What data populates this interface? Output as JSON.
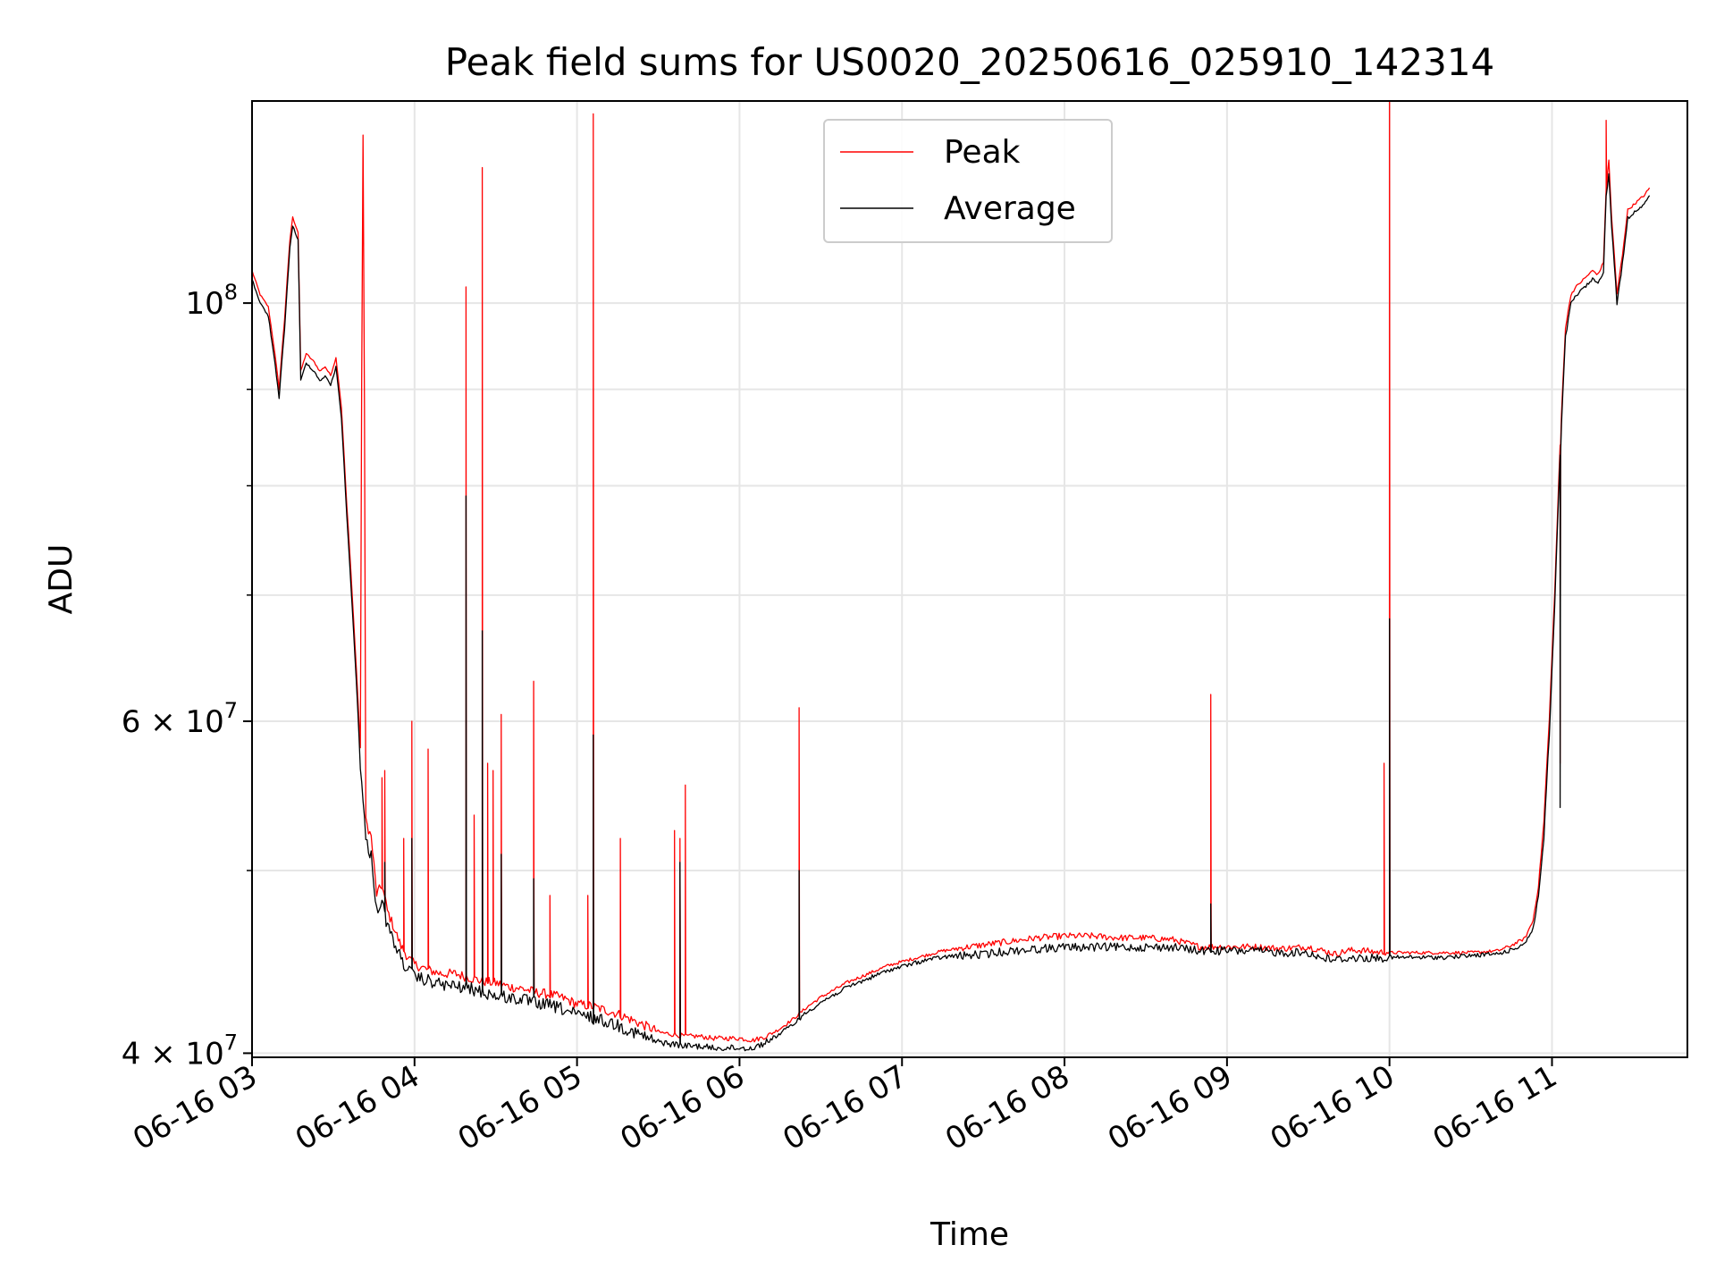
{
  "chart_data": {
    "type": "line",
    "title": "Peak field sums for US0020_20250616_025910_142314",
    "xlabel": "Time",
    "ylabel": "ADU",
    "x_ticks": [
      "06-16 03",
      "06-16 04",
      "06-16 05",
      "06-16 06",
      "06-16 07",
      "06-16 08",
      "06-16 09",
      "06-16 10",
      "06-16 11"
    ],
    "xlim": [
      "2025-06-16 03:00",
      "2025-06-16 11:50"
    ],
    "yscale": "log",
    "ylim": [
      39800000,
      128000000
    ],
    "y_major_ticks": [
      {
        "value": 40000000,
        "label": "4 × 10",
        "exp": "7"
      },
      {
        "value": 60000000,
        "label": "6 × 10",
        "exp": "7"
      },
      {
        "value": 100000000,
        "label": "10",
        "exp": "8"
      }
    ],
    "y_minor_ticks": [
      50000000,
      70000000,
      80000000,
      90000000
    ],
    "grid": true,
    "legend": {
      "position": "top-center"
    },
    "series": [
      {
        "name": "Peak",
        "color": "#ff0000",
        "points": [
          [
            "03:00",
            104000000
          ],
          [
            "03:03",
            101000000
          ],
          [
            "03:06",
            99500000
          ],
          [
            "03:08",
            95000000
          ],
          [
            "03:10",
            90000000
          ],
          [
            "03:12",
            98000000
          ],
          [
            "03:14",
            108000000
          ],
          [
            "03:15",
            111000000
          ],
          [
            "03:17",
            109000000
          ],
          [
            "03:18",
            92000000
          ],
          [
            "03:20",
            94000000
          ],
          [
            "03:23",
            93000000
          ],
          [
            "03:25",
            92000000
          ],
          [
            "03:27",
            92500000
          ],
          [
            "03:29",
            91500000
          ],
          [
            "03:31",
            93500000
          ],
          [
            "03:33",
            88000000
          ],
          [
            "03:35",
            78000000
          ],
          [
            "03:38",
            66000000
          ],
          [
            "03:40",
            58000000
          ],
          [
            "03:41",
            123000000
          ],
          [
            "03:42",
            53000000
          ],
          [
            "03:44",
            52000000
          ],
          [
            "03:46",
            48500000
          ],
          [
            "03:48",
            49000000
          ],
          [
            "03:50",
            47500000
          ],
          [
            "03:55",
            45500000
          ],
          [
            "03:58",
            44800000
          ],
          [
            "04:00",
            44500000
          ],
          [
            "04:05",
            44200000
          ],
          [
            "04:10",
            44000000
          ],
          [
            "04:15",
            44000000
          ],
          [
            "04:20",
            43800000
          ],
          [
            "04:25",
            43600000
          ],
          [
            "04:30",
            43500000
          ],
          [
            "04:35",
            43300000
          ],
          [
            "04:40",
            43200000
          ],
          [
            "04:45",
            43000000
          ],
          [
            "04:50",
            42900000
          ],
          [
            "04:55",
            42700000
          ],
          [
            "05:00",
            42400000
          ],
          [
            "05:05",
            42300000
          ],
          [
            "05:10",
            42100000
          ],
          [
            "05:15",
            41900000
          ],
          [
            "05:20",
            41600000
          ],
          [
            "05:25",
            41300000
          ],
          [
            "05:30",
            41000000
          ],
          [
            "05:35",
            40900000
          ],
          [
            "05:40",
            40800000
          ],
          [
            "05:45",
            40800000
          ],
          [
            "05:50",
            40700000
          ],
          [
            "05:55",
            40700000
          ],
          [
            "06:00",
            40700000
          ],
          [
            "06:05",
            40600000
          ],
          [
            "06:10",
            40800000
          ],
          [
            "06:15",
            41200000
          ],
          [
            "06:20",
            41700000
          ],
          [
            "06:25",
            42300000
          ],
          [
            "06:30",
            42800000
          ],
          [
            "06:35",
            43200000
          ],
          [
            "06:40",
            43600000
          ],
          [
            "06:45",
            43900000
          ],
          [
            "06:50",
            44200000
          ],
          [
            "06:55",
            44500000
          ],
          [
            "07:00",
            44700000
          ],
          [
            "07:05",
            44900000
          ],
          [
            "07:10",
            45100000
          ],
          [
            "07:15",
            45300000
          ],
          [
            "07:20",
            45400000
          ],
          [
            "07:30",
            45600000
          ],
          [
            "07:40",
            45800000
          ],
          [
            "07:50",
            46000000
          ],
          [
            "08:00",
            46100000
          ],
          [
            "08:10",
            46100000
          ],
          [
            "08:20",
            46000000
          ],
          [
            "08:30",
            46000000
          ],
          [
            "08:40",
            45900000
          ],
          [
            "08:45",
            45700000
          ],
          [
            "08:50",
            45500000
          ],
          [
            "09:00",
            45500000
          ],
          [
            "09:10",
            45500000
          ],
          [
            "09:20",
            45400000
          ],
          [
            "09:30",
            45500000
          ],
          [
            "09:35",
            45300000
          ],
          [
            "09:40",
            45100000
          ],
          [
            "09:45",
            45300000
          ],
          [
            "09:50",
            45300000
          ],
          [
            "09:55",
            45200000
          ],
          [
            "10:00",
            45200000
          ],
          [
            "10:10",
            45200000
          ],
          [
            "10:20",
            45200000
          ],
          [
            "10:30",
            45200000
          ],
          [
            "10:40",
            45300000
          ],
          [
            "10:45",
            45600000
          ],
          [
            "10:50",
            46000000
          ],
          [
            "10:53",
            47000000
          ],
          [
            "10:55",
            49000000
          ],
          [
            "10:57",
            53000000
          ],
          [
            "10:59",
            60000000
          ],
          [
            "11:01",
            70000000
          ],
          [
            "11:03",
            84000000
          ],
          [
            "11:05",
            97000000
          ],
          [
            "11:07",
            101000000
          ],
          [
            "11:09",
            102000000
          ],
          [
            "11:12",
            103000000
          ],
          [
            "11:15",
            104000000
          ],
          [
            "11:17",
            103500000
          ],
          [
            "11:19",
            105000000
          ],
          [
            "11:20",
            115000000
          ],
          [
            "11:21",
            119000000
          ],
          [
            "11:22",
            111000000
          ],
          [
            "11:24",
            101000000
          ],
          [
            "11:26",
            106000000
          ],
          [
            "11:28",
            112000000
          ],
          [
            "11:31",
            113000000
          ],
          [
            "11:34",
            114000000
          ],
          [
            "11:36",
            115000000
          ]
        ],
        "spikes": [
          [
            "03:48",
            56000000
          ],
          [
            "03:49",
            56500000
          ],
          [
            "03:56",
            52000000
          ],
          [
            "03:59",
            60000000
          ],
          [
            "04:05",
            58000000
          ],
          [
            "04:19",
            102000000
          ],
          [
            "04:22",
            53500000
          ],
          [
            "04:25",
            118000000
          ],
          [
            "04:27",
            57000000
          ],
          [
            "04:29",
            56500000
          ],
          [
            "04:32",
            60500000
          ],
          [
            "04:44",
            63000000
          ],
          [
            "04:50",
            48500000
          ],
          [
            "05:04",
            48500000
          ],
          [
            "05:06",
            126000000
          ],
          [
            "05:16",
            52000000
          ],
          [
            "05:36",
            52500000
          ],
          [
            "05:38",
            52000000
          ],
          [
            "05:40",
            55500000
          ],
          [
            "06:22",
            61000000
          ],
          [
            "08:54",
            62000000
          ],
          [
            "09:58",
            57000000
          ],
          [
            "10:00",
            140000000
          ],
          [
            "11:03",
            57000000
          ],
          [
            "11:20",
            125000000
          ]
        ]
      },
      {
        "name": "Average",
        "color": "#000000",
        "points": [
          [
            "03:00",
            103000000
          ],
          [
            "03:03",
            100000000
          ],
          [
            "03:06",
            98500000
          ],
          [
            "03:08",
            94000000
          ],
          [
            "03:10",
            89000000
          ],
          [
            "03:12",
            97000000
          ],
          [
            "03:14",
            107000000
          ],
          [
            "03:15",
            110000000
          ],
          [
            "03:17",
            108000000
          ],
          [
            "03:18",
            91000000
          ],
          [
            "03:20",
            93000000
          ],
          [
            "03:23",
            92000000
          ],
          [
            "03:25",
            91000000
          ],
          [
            "03:27",
            91500000
          ],
          [
            "03:29",
            90500000
          ],
          [
            "03:31",
            92500000
          ],
          [
            "03:33",
            87000000
          ],
          [
            "03:35",
            77000000
          ],
          [
            "03:38",
            65000000
          ],
          [
            "03:40",
            57000000
          ],
          [
            "03:41",
            54500000
          ],
          [
            "03:42",
            52000000
          ],
          [
            "03:44",
            51000000
          ],
          [
            "03:46",
            47800000
          ],
          [
            "03:48",
            48200000
          ],
          [
            "03:50",
            46800000
          ],
          [
            "03:55",
            45000000
          ],
          [
            "03:58",
            44300000
          ],
          [
            "04:00",
            44000000
          ],
          [
            "04:05",
            43800000
          ],
          [
            "04:10",
            43600000
          ],
          [
            "04:15",
            43500000
          ],
          [
            "04:20",
            43400000
          ],
          [
            "04:25",
            43200000
          ],
          [
            "04:30",
            43000000
          ],
          [
            "04:35",
            42900000
          ],
          [
            "04:40",
            42800000
          ],
          [
            "04:45",
            42600000
          ],
          [
            "04:50",
            42500000
          ],
          [
            "04:55",
            42300000
          ],
          [
            "05:00",
            42000000
          ],
          [
            "05:05",
            41900000
          ],
          [
            "05:10",
            41700000
          ],
          [
            "05:15",
            41500000
          ],
          [
            "05:20",
            41200000
          ],
          [
            "05:25",
            40900000
          ],
          [
            "05:30",
            40600000
          ],
          [
            "05:35",
            40500000
          ],
          [
            "05:40",
            40400000
          ],
          [
            "05:45",
            40400000
          ],
          [
            "05:50",
            40300000
          ],
          [
            "05:55",
            40300000
          ],
          [
            "06:00",
            40300000
          ],
          [
            "06:05",
            40300000
          ],
          [
            "06:10",
            40600000
          ],
          [
            "06:15",
            41000000
          ],
          [
            "06:20",
            41500000
          ],
          [
            "06:25",
            42100000
          ],
          [
            "06:30",
            42600000
          ],
          [
            "06:35",
            43000000
          ],
          [
            "06:40",
            43400000
          ],
          [
            "06:45",
            43700000
          ],
          [
            "06:50",
            44000000
          ],
          [
            "06:55",
            44300000
          ],
          [
            "07:00",
            44500000
          ],
          [
            "07:05",
            44700000
          ],
          [
            "07:10",
            44900000
          ],
          [
            "07:15",
            45000000
          ],
          [
            "07:20",
            45100000
          ],
          [
            "07:30",
            45200000
          ],
          [
            "07:40",
            45400000
          ],
          [
            "07:50",
            45500000
          ],
          [
            "08:00",
            45600000
          ],
          [
            "08:10",
            45600000
          ],
          [
            "08:20",
            45600000
          ],
          [
            "08:30",
            45600000
          ],
          [
            "08:40",
            45600000
          ],
          [
            "08:45",
            45500000
          ],
          [
            "08:50",
            45400000
          ],
          [
            "09:00",
            45400000
          ],
          [
            "09:10",
            45400000
          ],
          [
            "09:20",
            45300000
          ],
          [
            "09:30",
            45300000
          ],
          [
            "09:35",
            45000000
          ],
          [
            "09:40",
            44900000
          ],
          [
            "09:45",
            45000000
          ],
          [
            "09:50",
            45000000
          ],
          [
            "09:55",
            45000000
          ],
          [
            "10:00",
            45000000
          ],
          [
            "10:10",
            45000000
          ],
          [
            "10:20",
            45000000
          ],
          [
            "10:30",
            45100000
          ],
          [
            "10:40",
            45200000
          ],
          [
            "10:45",
            45400000
          ],
          [
            "10:50",
            45800000
          ],
          [
            "10:53",
            46600000
          ],
          [
            "10:55",
            48500000
          ],
          [
            "10:57",
            52000000
          ],
          [
            "10:59",
            59000000
          ],
          [
            "11:01",
            69000000
          ],
          [
            "11:03",
            83000000
          ],
          [
            "11:05",
            96000000
          ],
          [
            "11:07",
            100000000
          ],
          [
            "11:09",
            101000000
          ],
          [
            "11:12",
            102000000
          ],
          [
            "11:15",
            103000000
          ],
          [
            "11:17",
            102500000
          ],
          [
            "11:19",
            104000000
          ],
          [
            "11:20",
            114000000
          ],
          [
            "11:21",
            117000000
          ],
          [
            "11:22",
            110000000
          ],
          [
            "11:24",
            100000000
          ],
          [
            "11:26",
            105000000
          ],
          [
            "11:28",
            111000000
          ],
          [
            "11:31",
            112000000
          ],
          [
            "11:34",
            113000000
          ],
          [
            "11:36",
            114000000
          ]
        ],
        "spikes": [
          [
            "03:49",
            50500000
          ],
          [
            "03:59",
            52000000
          ],
          [
            "04:19",
            79000000
          ],
          [
            "04:25",
            67000000
          ],
          [
            "04:32",
            51000000
          ],
          [
            "04:44",
            49500000
          ],
          [
            "05:06",
            59000000
          ],
          [
            "05:38",
            50500000
          ],
          [
            "06:22",
            50000000
          ],
          [
            "08:54",
            48000000
          ],
          [
            "10:00",
            68000000
          ],
          [
            "11:03",
            54000000
          ]
        ]
      }
    ]
  }
}
